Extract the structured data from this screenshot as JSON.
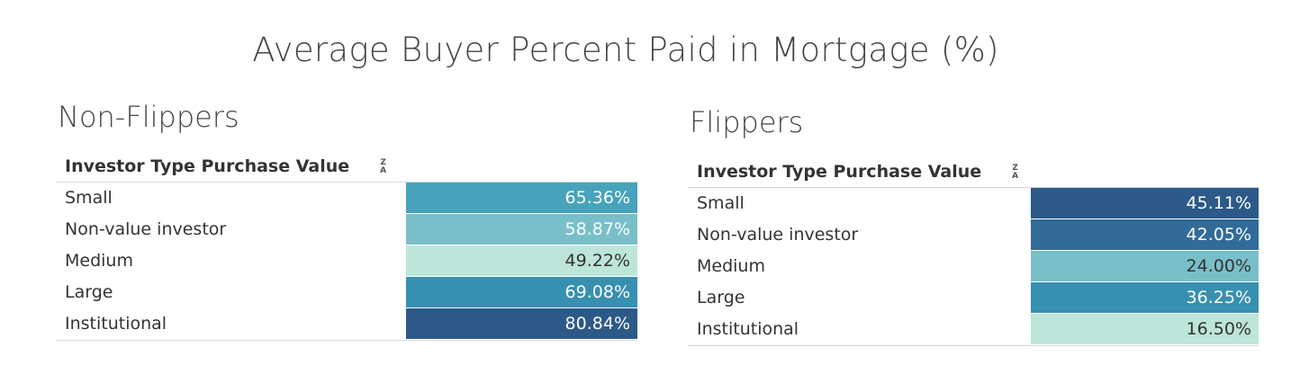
{
  "title": "Average Buyer Percent Paid in Mortgage (%)",
  "chart_data": [
    {
      "type": "table",
      "title": "Non-Flippers",
      "column_header": "Investor Type Purchase Value",
      "categories": [
        "Small",
        "Non-value investor",
        "Medium",
        "Large",
        "Institutional"
      ],
      "values": [
        65.36,
        58.87,
        49.22,
        69.08,
        80.84
      ],
      "display_values": [
        "65.36%",
        "58.87%",
        "49.22%",
        "69.08%",
        "80.84%"
      ],
      "cell_colors": [
        "#46a3bb",
        "#79bfc9",
        "#bde5da",
        "#3790b0",
        "#2c5987"
      ],
      "text_colors": [
        "#ffffff",
        "#ffffff",
        "#333333",
        "#ffffff",
        "#ffffff"
      ]
    },
    {
      "type": "table",
      "title": "Flippers",
      "column_header": "Investor Type Purchase Value",
      "categories": [
        "Small",
        "Non-value investor",
        "Medium",
        "Large",
        "Institutional"
      ],
      "values": [
        45.11,
        42.05,
        24.0,
        36.25,
        16.5
      ],
      "display_values": [
        "45.11%",
        "42.05%",
        "24.00%",
        "36.25%",
        "16.50%"
      ],
      "cell_colors": [
        "#2c5987",
        "#326b98",
        "#79bfc9",
        "#3790b0",
        "#bde5da"
      ],
      "text_colors": [
        "#ffffff",
        "#ffffff",
        "#333333",
        "#ffffff",
        "#333333"
      ]
    }
  ],
  "sort_icon": {
    "name": "sort-descending-icon",
    "top": "Z",
    "bottom": "A"
  }
}
